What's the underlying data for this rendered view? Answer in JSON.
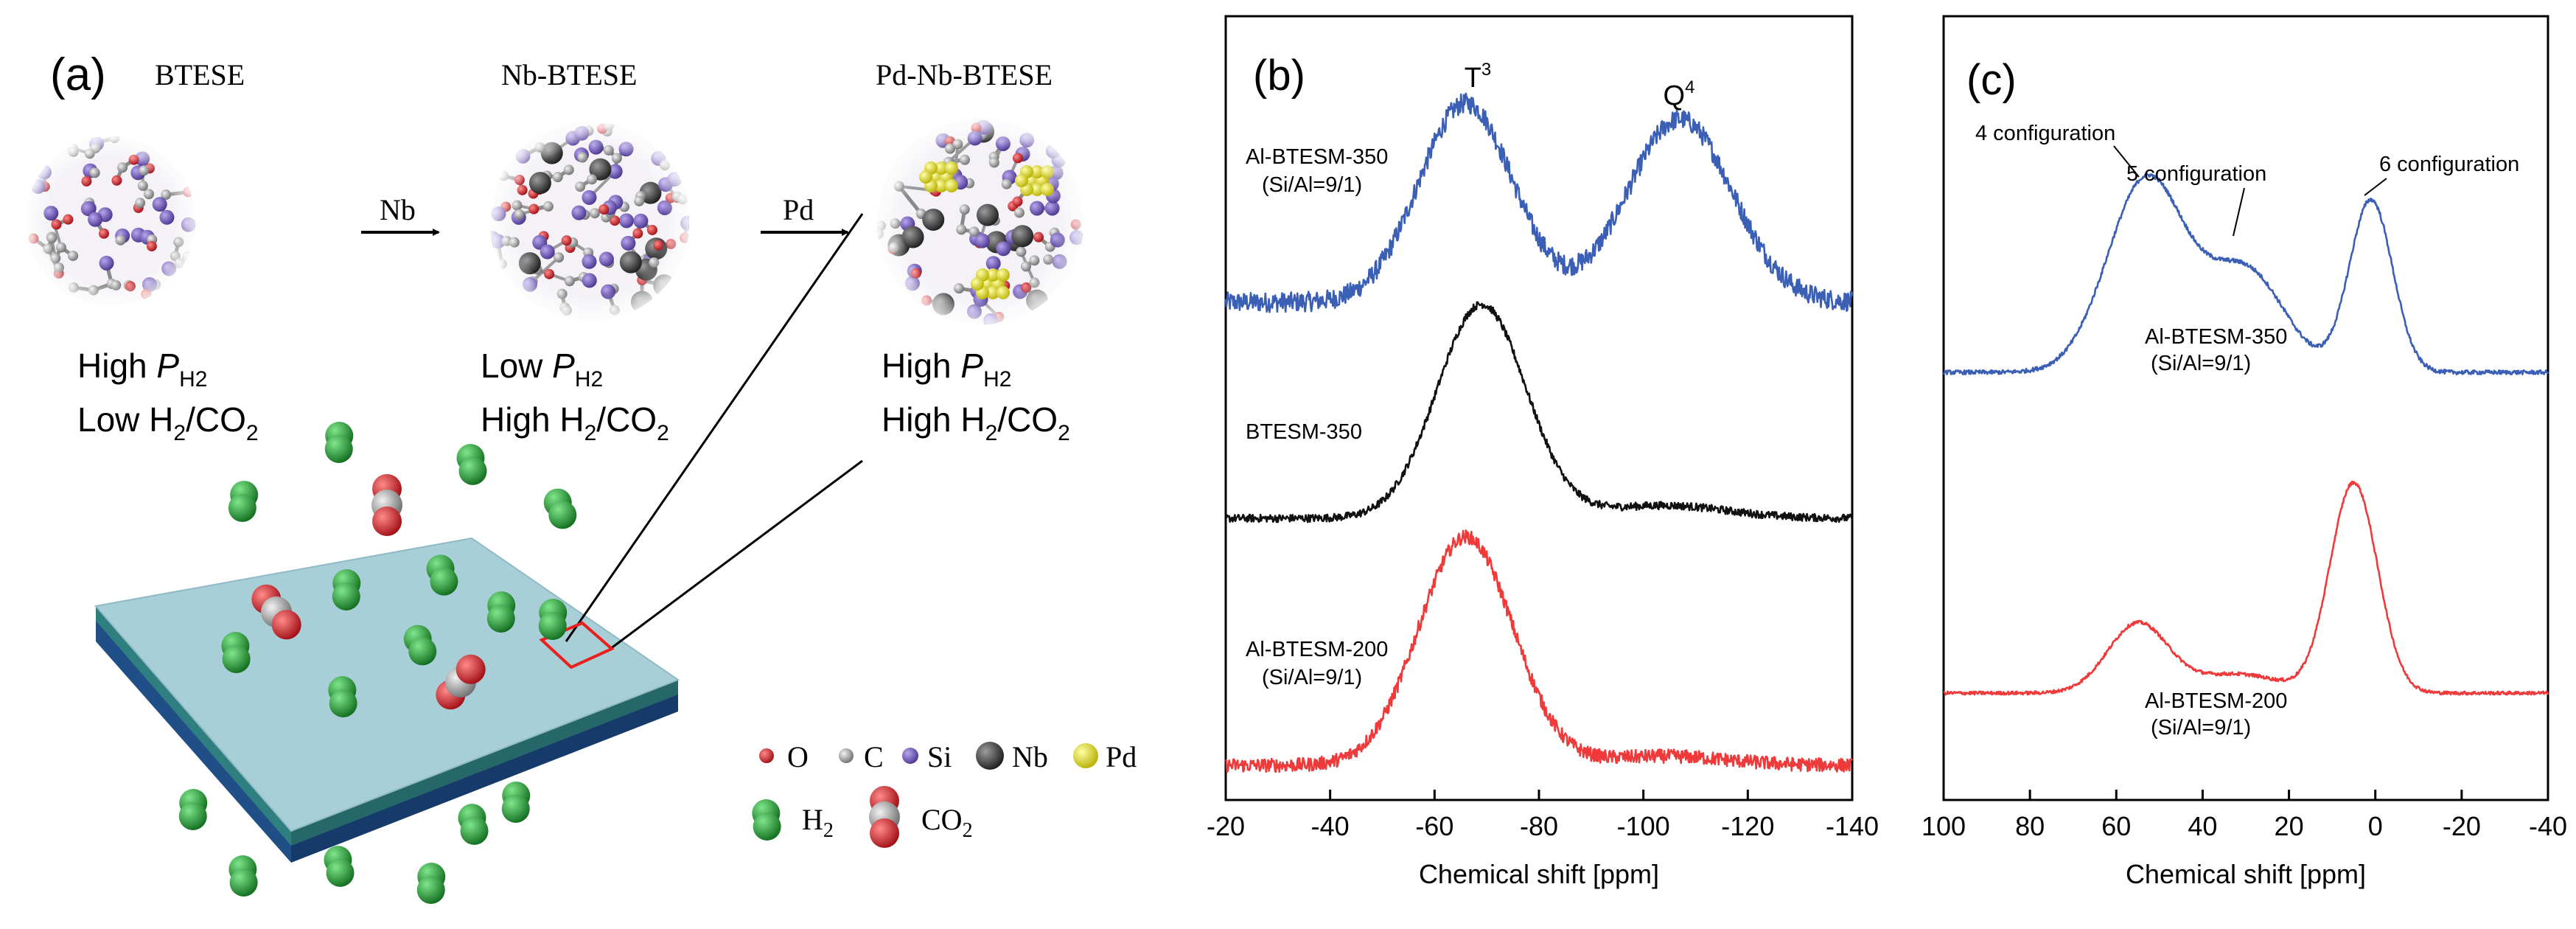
{
  "colors": {
    "blue": "#3a5fb5",
    "black": "#111111",
    "red": "#ee3a3a",
    "frame": "#000000",
    "membrane_top": "#a8cfd8",
    "membrane_mid": "#2f7f80",
    "membrane_bottom": "#1f4f86",
    "h2_green": "#1f9a2f",
    "oxygen_red": "#c8161e",
    "carbon_gray": "#9a9a9a",
    "si_purple": "#6c52b8",
    "nb_dark": "#3a3a3a",
    "pd_yellow": "#e8e21a",
    "highlight_box": "#e8201e"
  },
  "panel_a": {
    "label": "(a)",
    "structures": [
      {
        "title": "BTESE",
        "line1_prefix": "High ",
        "line1_symbol": "P",
        "line1_sub": "H2",
        "line2_prefix": "Low H",
        "line2_sub": "2",
        "line2_suffix": "/CO",
        "line2_sub2": "2"
      },
      {
        "title": "Nb-BTESE",
        "line1_prefix": "Low ",
        "line1_symbol": "P",
        "line1_sub": "H2",
        "line2_prefix": "High H",
        "line2_sub": "2",
        "line2_suffix": "/CO",
        "line2_sub2": "2"
      },
      {
        "title": "Pd-Nb-BTESE",
        "line1_prefix": "High ",
        "line1_symbol": "P",
        "line1_sub": "H2",
        "line2_prefix": "High H",
        "line2_sub": "2",
        "line2_suffix": "/CO",
        "line2_sub2": "2"
      }
    ],
    "arrows": [
      "Nb",
      "Pd"
    ],
    "legend": {
      "atoms": [
        "O",
        "C",
        "Si",
        "Nb",
        "Pd"
      ],
      "h2_label": "H",
      "h2_sub": "2",
      "co2_label": "CO",
      "co2_sub": "2"
    }
  },
  "chart_data": [
    {
      "type": "line",
      "panel_label": "(b)",
      "title": "",
      "xlabel": "Chemical shift [ppm]",
      "ylabel": "",
      "xlim": [
        -20,
        -140
      ],
      "x_reversed": true,
      "x_ticks": [
        -20,
        -40,
        -60,
        -80,
        -100,
        -120,
        -140
      ],
      "x_tick_labels": [
        "-20",
        "-40",
        "-60",
        "-80",
        "-100",
        "-120",
        "-140"
      ],
      "y_ticks": "none",
      "peak_labels": [
        {
          "text": "T",
          "sup": "3",
          "x": -67
        },
        {
          "text": "Q",
          "sup": "4",
          "x": -107
        }
      ],
      "series": [
        {
          "name": "Al-BTESM-350",
          "note": "(Si/Al=9/1)",
          "color_key": "blue",
          "baseline": 0.0,
          "noise": 0.05,
          "peaks": [
            {
              "center": -66,
              "width": 9,
              "height": 1.0
            },
            {
              "center": -107,
              "width": 10,
              "height": 0.92
            }
          ]
        },
        {
          "name": "BTESM-350",
          "note": "",
          "color_key": "black",
          "baseline": 0.0,
          "noise": 0.018,
          "peaks": [
            {
              "center": -69,
              "width": 8.5,
              "height": 1.0
            },
            {
              "center": -104,
              "width": 12,
              "height": 0.06
            }
          ]
        },
        {
          "name": "Al-BTESM-200",
          "note": "(Si/Al=9/1)",
          "color_key": "red",
          "baseline": 0.0,
          "noise": 0.03,
          "peaks": [
            {
              "center": -66,
              "width": 9,
              "height": 1.0
            },
            {
              "center": -104,
              "width": 12,
              "height": 0.04
            }
          ]
        }
      ]
    },
    {
      "type": "line",
      "panel_label": "(c)",
      "title": "",
      "xlabel": "Chemical shift [ppm]",
      "ylabel": "",
      "xlim": [
        100,
        -40
      ],
      "x_reversed": true,
      "x_ticks": [
        100,
        80,
        60,
        40,
        20,
        0,
        -20,
        -40
      ],
      "x_tick_labels": [
        "100",
        "80",
        "60",
        "40",
        "20",
        "0",
        "-20",
        "-40"
      ],
      "y_ticks": "none",
      "annotations": [
        {
          "text": "4 configuration",
          "x": 53
        },
        {
          "text": "5 configuration",
          "x": 30
        },
        {
          "text": "6 configuration",
          "x": 1
        }
      ],
      "series": [
        {
          "name": "Al-BTESM-350",
          "note": "(Si/Al=9/1)",
          "color_key": "blue",
          "baseline": 0.0,
          "noise": 0.01,
          "peaks": [
            {
              "center": 53,
              "width": 9,
              "height": 0.92
            },
            {
              "center": 30,
              "width": 9,
              "height": 0.48
            },
            {
              "center": 1,
              "width": 5,
              "height": 0.82
            }
          ]
        },
        {
          "name": "Al-BTESM-200",
          "note": "(Si/Al=9/1)",
          "color_key": "red",
          "baseline": 0.0,
          "noise": 0.008,
          "peaks": [
            {
              "center": 55,
              "width": 7,
              "height": 0.33
            },
            {
              "center": 32,
              "width": 10,
              "height": 0.09
            },
            {
              "center": 5,
              "width": 5.5,
              "height": 1.0
            }
          ]
        }
      ]
    }
  ]
}
